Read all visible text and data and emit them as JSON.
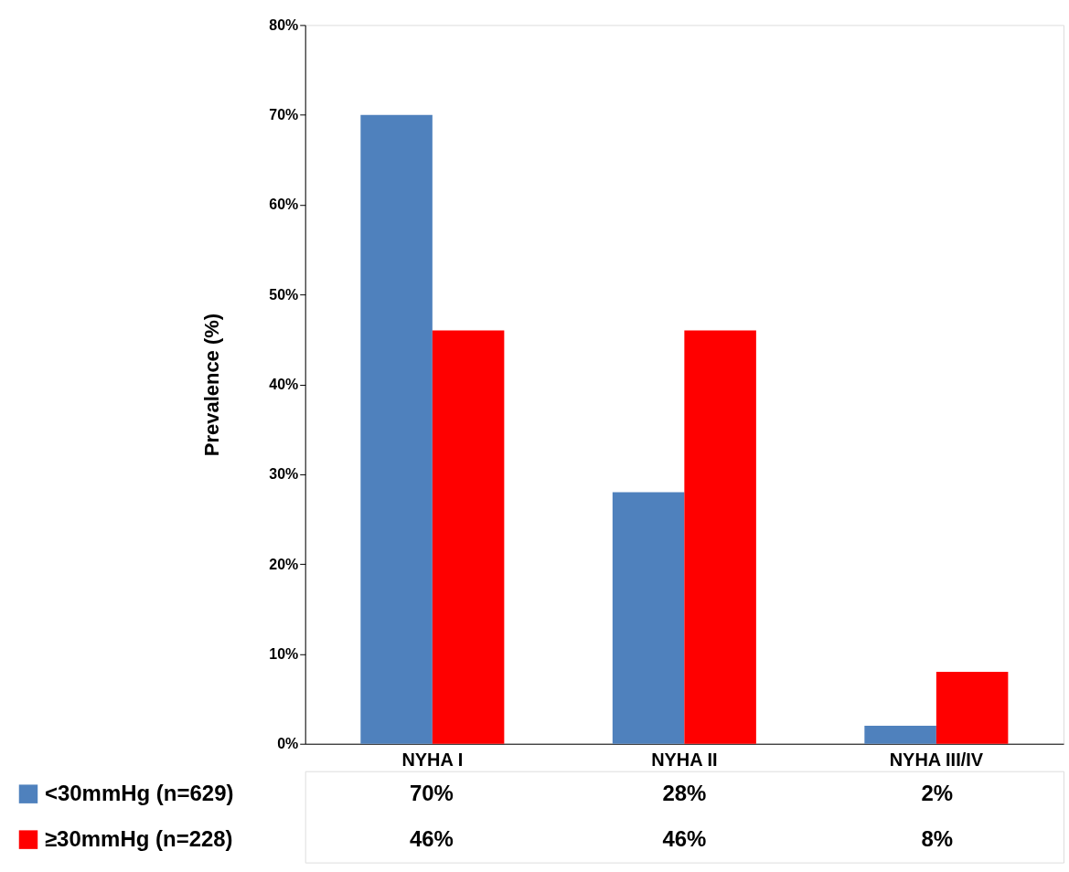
{
  "chart_data": {
    "type": "bar",
    "ylabel": "Prevalence (%)",
    "categories": [
      "NYHA I",
      "NYHA II",
      "NYHA III/IV"
    ],
    "series": [
      {
        "name": "<30mmHg (n=629)",
        "color": "#4f81bd",
        "values": [
          70,
          28,
          2
        ],
        "value_labels": [
          "70%",
          "28%",
          "2%"
        ]
      },
      {
        "name": "≥30mmHg (n=228)",
        "color": "#ff0000",
        "values": [
          46,
          46,
          8
        ],
        "value_labels": [
          "46%",
          "46%",
          "8%"
        ]
      }
    ],
    "ylim": [
      0,
      80
    ],
    "yticks": [
      {
        "value": 0,
        "label": "0%"
      },
      {
        "value": 10,
        "label": "10%"
      },
      {
        "value": 20,
        "label": "20%"
      },
      {
        "value": 30,
        "label": "30%"
      },
      {
        "value": 40,
        "label": "40%"
      },
      {
        "value": 50,
        "label": "50%"
      },
      {
        "value": 60,
        "label": "60%"
      },
      {
        "value": 70,
        "label": "70%"
      },
      {
        "value": 80,
        "label": "80%"
      }
    ],
    "grid": false,
    "legend": "bottom"
  }
}
